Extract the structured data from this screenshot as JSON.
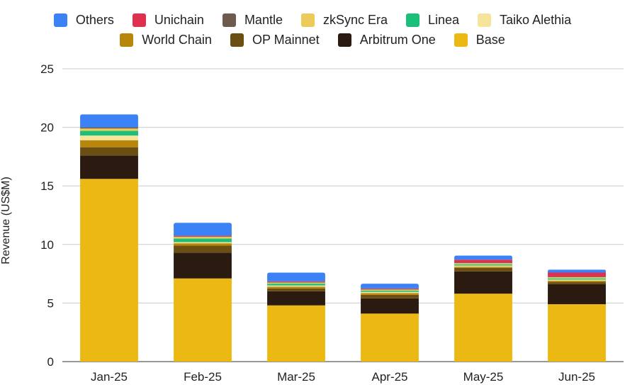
{
  "chart_data": {
    "type": "bar",
    "stacked": true,
    "title": "",
    "xlabel": "",
    "ylabel": "Revenue (US$M)",
    "ylim": [
      0,
      25
    ],
    "yticks": [
      0,
      5,
      10,
      15,
      20,
      25
    ],
    "grid": true,
    "legend_position": "top",
    "categories": [
      "Jan-25",
      "Feb-25",
      "Mar-25",
      "Apr-25",
      "May-25",
      "Jun-25"
    ],
    "series": [
      {
        "name": "Base",
        "color": "#ecb813",
        "values": [
          15.6,
          7.1,
          4.8,
          4.1,
          5.8,
          4.9
        ]
      },
      {
        "name": "Arbitrum One",
        "color": "#2a1a10",
        "values": [
          2.0,
          2.2,
          1.2,
          1.3,
          1.9,
          1.7
        ]
      },
      {
        "name": "OP Mainnet",
        "color": "#6b4f12",
        "values": [
          0.7,
          0.6,
          0.25,
          0.3,
          0.3,
          0.2
        ]
      },
      {
        "name": "World Chain",
        "color": "#b8860b",
        "values": [
          0.6,
          0.2,
          0.15,
          0.15,
          0.1,
          0.1
        ]
      },
      {
        "name": "Taiko Alethia",
        "color": "#f7e49b",
        "values": [
          0.4,
          0.1,
          0.1,
          0.1,
          0.1,
          0.1
        ]
      },
      {
        "name": "Linea",
        "color": "#1abf7a",
        "values": [
          0.4,
          0.3,
          0.15,
          0.1,
          0.1,
          0.1
        ]
      },
      {
        "name": "zkSync Era",
        "color": "#eccb5a",
        "values": [
          0.2,
          0.15,
          0.1,
          0.1,
          0.1,
          0.1
        ]
      },
      {
        "name": "Mantle",
        "color": "#6f5b4e",
        "values": [
          0.1,
          0.05,
          0.05,
          0.05,
          0.05,
          0.05
        ]
      },
      {
        "name": "Unichain",
        "color": "#e0304f",
        "values": [
          0.0,
          0.05,
          0.05,
          0.05,
          0.25,
          0.35
        ]
      },
      {
        "name": "Others",
        "color": "#3b82f6",
        "values": [
          1.1,
          1.1,
          0.75,
          0.4,
          0.35,
          0.25
        ]
      }
    ]
  },
  "legend": {
    "row1": [
      {
        "label": "Others",
        "color": "#3b82f6"
      },
      {
        "label": "Unichain",
        "color": "#e0304f"
      },
      {
        "label": "Mantle",
        "color": "#6f5b4e"
      },
      {
        "label": "zkSync Era",
        "color": "#eccb5a"
      },
      {
        "label": "Linea",
        "color": "#1abf7a"
      },
      {
        "label": "Taiko Alethia",
        "color": "#f7e49b"
      }
    ],
    "row2": [
      {
        "label": "World Chain",
        "color": "#b8860b"
      },
      {
        "label": "OP Mainnet",
        "color": "#6b4f12"
      },
      {
        "label": "Arbitrum One",
        "color": "#2a1a10"
      },
      {
        "label": "Base",
        "color": "#ecb813"
      }
    ]
  }
}
